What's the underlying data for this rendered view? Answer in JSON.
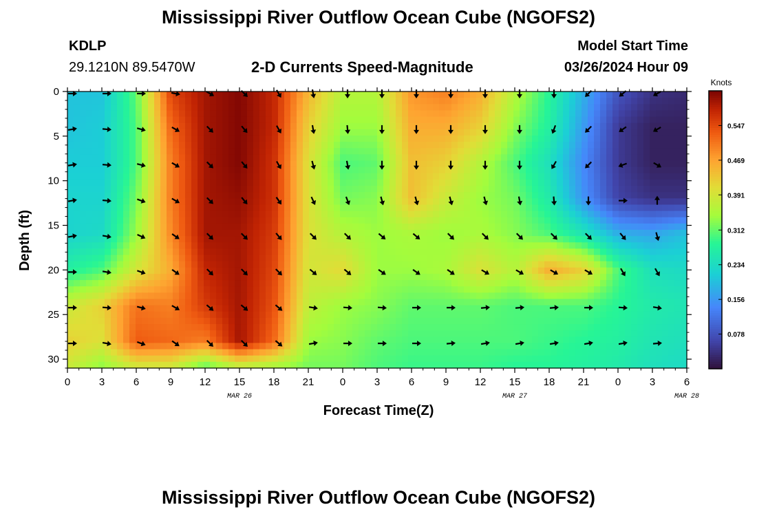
{
  "header": {
    "title": "Mississippi River Outflow Ocean Cube (NGOFS2)",
    "station_id": "KDLP",
    "coords": "29.1210N  89.5470W",
    "subtitle": "2-D Currents Speed-Magnitude",
    "model_start_label": "Model Start Time",
    "model_start_value": "03/26/2024 Hour 09"
  },
  "footer": {
    "title": "Mississippi River Outflow Ocean Cube (NGOFS2)"
  },
  "chart_data": {
    "type": "heatmap",
    "title": "2-D Currents Speed-Magnitude",
    "xlabel": "Forecast Time(Z)",
    "ylabel": "Depth (ft)",
    "x_ticks": [
      "0",
      "3",
      "6",
      "9",
      "12",
      "15",
      "18",
      "21",
      "0",
      "3",
      "6",
      "9",
      "12",
      "15",
      "18",
      "21",
      "0",
      "3",
      "6"
    ],
    "day_labels": [
      {
        "text": "MAR 26",
        "hour": 15
      },
      {
        "text": "MAR 27",
        "hour": 39
      },
      {
        "text": "MAR 28",
        "hour": 54
      }
    ],
    "y_ticks": [
      0,
      5,
      10,
      15,
      20,
      25,
      30
    ],
    "ylim": [
      0,
      31
    ],
    "xlim_hours": [
      0,
      54
    ],
    "colorbar": {
      "label": "Knots",
      "ticks": [
        "0.547",
        "0.469",
        "0.391",
        "0.312",
        "0.234",
        "0.156",
        "0.078"
      ],
      "tick_values": [
        0.547,
        0.469,
        0.391,
        0.312,
        0.234,
        0.156,
        0.078
      ],
      "min": 0.0,
      "max": 0.625
    },
    "arrow_hours": [
      0,
      3,
      6,
      9,
      12,
      15,
      18,
      21,
      24,
      27,
      30,
      33,
      36,
      39,
      42,
      45,
      48,
      51
    ],
    "arrow_depths": [
      0,
      4,
      8,
      12,
      16,
      20,
      24,
      28
    ],
    "grid_hours": [
      0,
      3,
      6,
      9,
      12,
      15,
      18,
      21,
      24,
      27,
      30,
      33,
      36,
      39,
      42,
      45,
      48,
      51,
      54
    ],
    "grid_depths": [
      0,
      4,
      8,
      12,
      16,
      20,
      24,
      28,
      31
    ],
    "speed": [
      [
        0.2,
        0.2,
        0.31,
        0.55,
        0.6,
        0.62,
        0.58,
        0.45,
        0.36,
        0.36,
        0.48,
        0.5,
        0.46,
        0.36,
        0.28,
        0.18,
        0.08,
        0.04,
        0.03
      ],
      [
        0.2,
        0.21,
        0.3,
        0.52,
        0.6,
        0.62,
        0.58,
        0.42,
        0.34,
        0.34,
        0.46,
        0.46,
        0.42,
        0.33,
        0.27,
        0.16,
        0.05,
        0.02,
        0.02
      ],
      [
        0.21,
        0.21,
        0.3,
        0.5,
        0.6,
        0.62,
        0.57,
        0.4,
        0.3,
        0.31,
        0.44,
        0.42,
        0.36,
        0.3,
        0.24,
        0.14,
        0.05,
        0.02,
        0.02
      ],
      [
        0.22,
        0.22,
        0.32,
        0.5,
        0.6,
        0.61,
        0.57,
        0.4,
        0.32,
        0.33,
        0.44,
        0.38,
        0.34,
        0.32,
        0.26,
        0.15,
        0.06,
        0.04,
        0.04
      ],
      [
        0.22,
        0.23,
        0.34,
        0.49,
        0.6,
        0.6,
        0.56,
        0.4,
        0.36,
        0.34,
        0.35,
        0.34,
        0.35,
        0.33,
        0.3,
        0.25,
        0.18,
        0.17,
        0.2
      ],
      [
        0.27,
        0.3,
        0.39,
        0.46,
        0.58,
        0.6,
        0.55,
        0.39,
        0.41,
        0.34,
        0.34,
        0.35,
        0.4,
        0.36,
        0.46,
        0.42,
        0.3,
        0.24,
        0.23
      ],
      [
        0.38,
        0.42,
        0.51,
        0.5,
        0.56,
        0.6,
        0.54,
        0.37,
        0.34,
        0.33,
        0.31,
        0.31,
        0.31,
        0.3,
        0.3,
        0.3,
        0.28,
        0.26,
        0.25
      ],
      [
        0.42,
        0.4,
        0.53,
        0.52,
        0.5,
        0.6,
        0.52,
        0.34,
        0.33,
        0.31,
        0.3,
        0.3,
        0.3,
        0.3,
        0.29,
        0.28,
        0.27,
        0.25,
        0.24
      ],
      [
        0.38,
        0.33,
        0.38,
        0.38,
        0.3,
        0.36,
        0.34,
        0.32,
        0.32,
        0.3,
        0.29,
        0.29,
        0.29,
        0.28,
        0.28,
        0.27,
        0.26,
        0.24,
        0.23
      ]
    ],
    "direction_deg": [
      [
        90,
        90,
        90,
        100,
        120,
        135,
        150,
        170,
        180,
        180,
        180,
        180,
        180,
        180,
        180,
        225,
        230,
        240
      ],
      [
        80,
        95,
        105,
        120,
        135,
        140,
        150,
        170,
        175,
        180,
        180,
        180,
        180,
        180,
        200,
        225,
        235,
        240
      ],
      [
        80,
        95,
        105,
        120,
        135,
        140,
        150,
        165,
        170,
        180,
        180,
        180,
        180,
        180,
        210,
        225,
        250,
        120
      ],
      [
        80,
        95,
        110,
        120,
        135,
        140,
        145,
        155,
        160,
        165,
        165,
        165,
        165,
        170,
        175,
        180,
        90,
        0
      ],
      [
        80,
        100,
        115,
        125,
        135,
        135,
        140,
        135,
        135,
        130,
        130,
        135,
        135,
        135,
        135,
        135,
        140,
        165
      ],
      [
        90,
        100,
        110,
        125,
        135,
        135,
        135,
        130,
        130,
        125,
        125,
        125,
        120,
        120,
        120,
        120,
        150,
        150
      ],
      [
        90,
        95,
        105,
        120,
        130,
        130,
        130,
        100,
        95,
        95,
        90,
        90,
        85,
        85,
        85,
        90,
        95,
        100
      ],
      [
        90,
        100,
        110,
        125,
        135,
        135,
        130,
        80,
        90,
        90,
        90,
        85,
        80,
        80,
        80,
        80,
        80,
        85
      ]
    ]
  }
}
